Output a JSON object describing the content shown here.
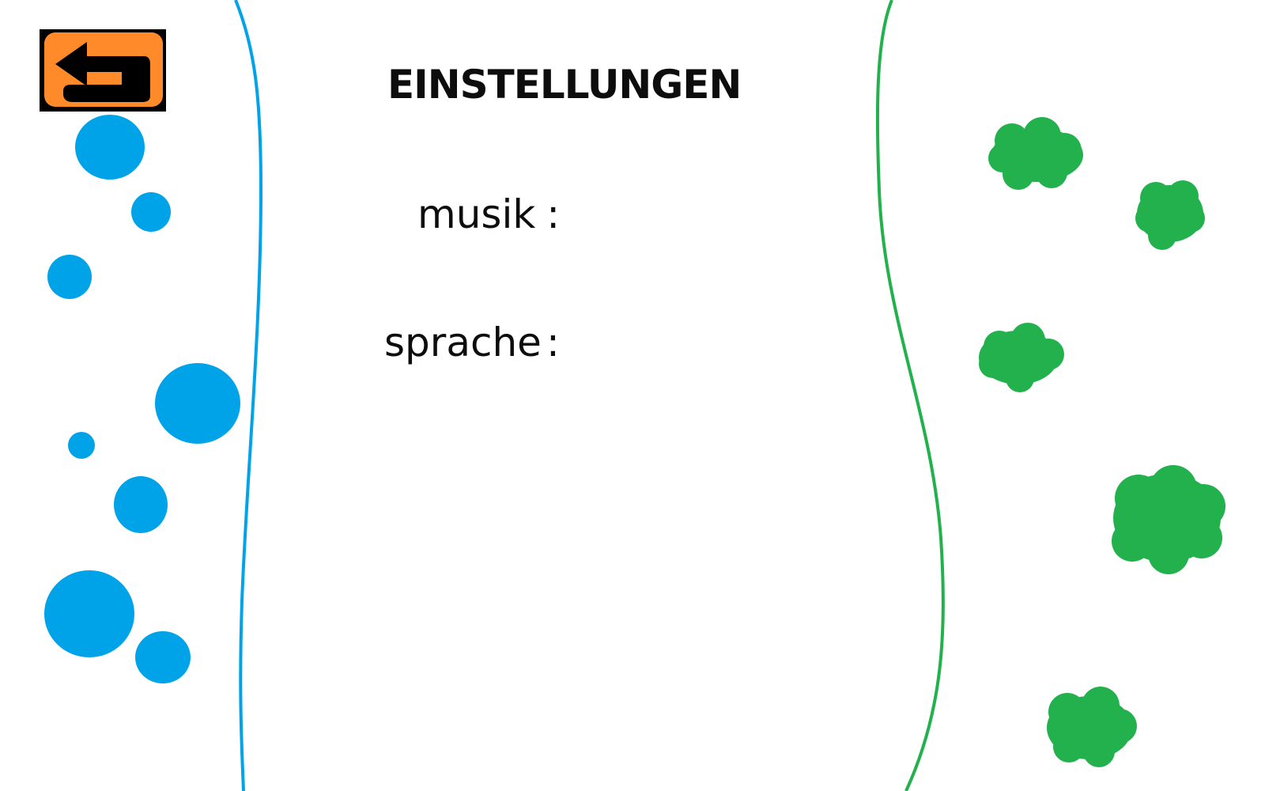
{
  "screen": {
    "title": "EINSTELLUNGEN"
  },
  "settings": [
    {
      "label": "musik",
      "separator": ":"
    },
    {
      "label": "sprache",
      "separator": ":"
    }
  ],
  "back_button": {
    "icon": "return-arrow-icon",
    "background_color": "#ff8a2a",
    "frame_color": "#000000"
  },
  "colors": {
    "water": "#00a3e8",
    "bushes": "#22b14c",
    "background": "#ffffff",
    "text": "#0d0d0d"
  },
  "decorations": {
    "left_side": "water-bubbles",
    "right_side": "green-bushes"
  }
}
